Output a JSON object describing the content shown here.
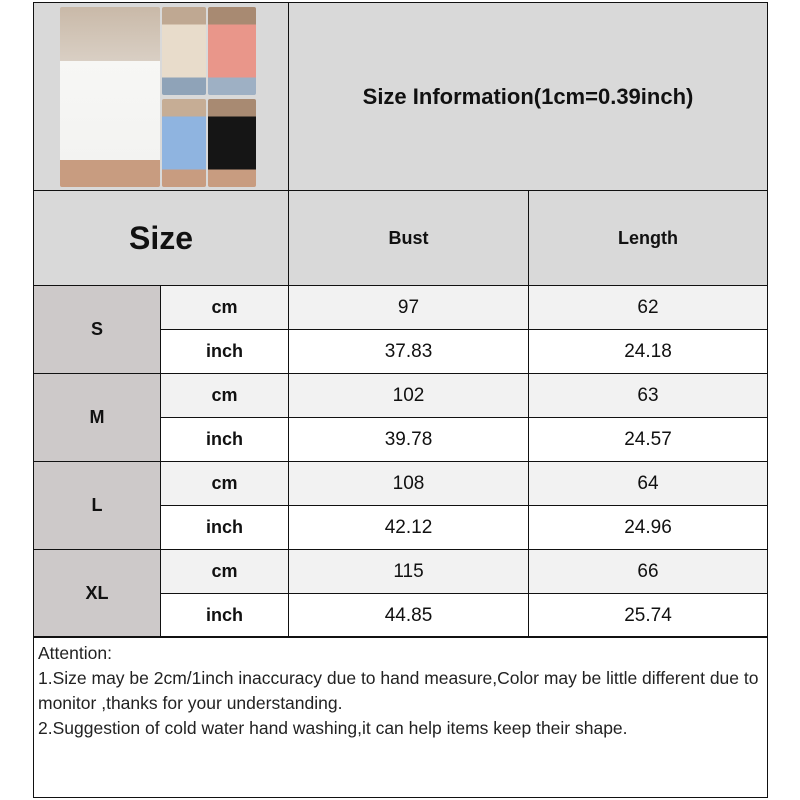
{
  "title": "Size Information(1cm=0.39inch)",
  "header": {
    "size": "Size",
    "bust": "Bust",
    "length": "Length"
  },
  "rows": [
    {
      "size": "S",
      "cm": {
        "unit": "cm",
        "bust": "97",
        "length": "62"
      },
      "inch": {
        "unit": "inch",
        "bust": "37.83",
        "length": "24.18"
      }
    },
    {
      "size": "M",
      "cm": {
        "unit": "cm",
        "bust": "102",
        "length": "63"
      },
      "inch": {
        "unit": "inch",
        "bust": "39.78",
        "length": "24.57"
      }
    },
    {
      "size": "L",
      "cm": {
        "unit": "cm",
        "bust": "108",
        "length": "64"
      },
      "inch": {
        "unit": "inch",
        "bust": "42.12",
        "length": "24.96"
      }
    },
    {
      "size": "XL",
      "cm": {
        "unit": "cm",
        "bust": "115",
        "length": "66"
      },
      "inch": {
        "unit": "inch",
        "bust": "44.85",
        "length": "25.74"
      }
    }
  ],
  "attention": {
    "heading": "Attention:",
    "line1": "1.Size may be 2cm/1inch inaccuracy due to hand measure,Color may be little different due to monitor ,thanks for your understanding.",
    "line2": "2.Suggestion of cold water hand washing,it can help items keep their shape."
  },
  "product_colors": [
    "#f7f7f5",
    "#e8dccb",
    "#e9968a",
    "#8fb4e0",
    "#151515"
  ]
}
